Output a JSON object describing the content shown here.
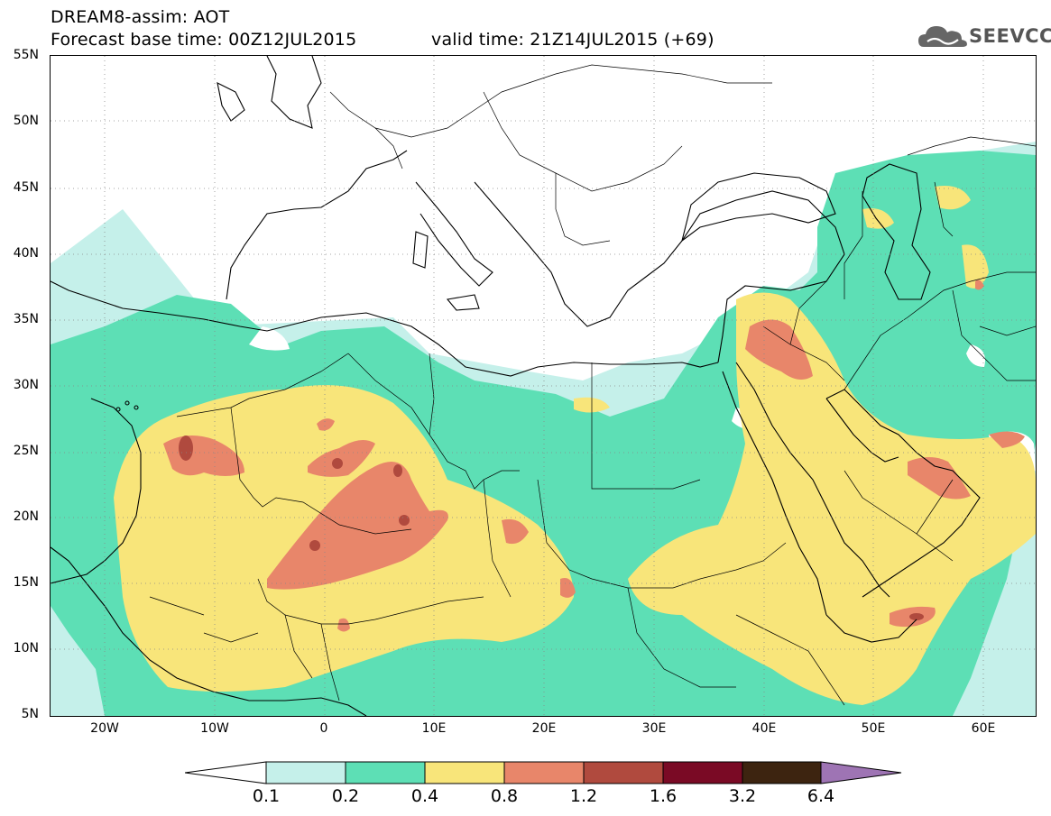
{
  "header": {
    "line1": "DREAM8-assim: AOT",
    "line2_left": "Forecast base time: 00Z12JUL2015",
    "line2_right": "valid time: 21Z14JUL2015 (+69)",
    "logo_text": "SEEVCCC"
  },
  "axes": {
    "lat_labels": [
      "55N",
      "50N",
      "45N",
      "40N",
      "35N",
      "30N",
      "25N",
      "20N",
      "15N",
      "10N",
      "5N"
    ],
    "lon_labels": [
      "20W",
      "10W",
      "0",
      "10E",
      "20E",
      "30E",
      "40E",
      "50E",
      "60E"
    ]
  },
  "colorbar": {
    "levels": [
      "0.1",
      "0.2",
      "0.4",
      "0.8",
      "1.2",
      "1.6",
      "3.2",
      "6.4"
    ],
    "colors": [
      "#c5f0ea",
      "#5ddfb5",
      "#f8e57a",
      "#e8866a",
      "#b04a3e",
      "#7a0a25",
      "#3d2410",
      "#9e74b4"
    ],
    "under_color": "#ffffff",
    "over_color": "#9e74b4"
  },
  "legend_colors": {
    "land_outline": "#000000",
    "background": "#ffffff"
  }
}
